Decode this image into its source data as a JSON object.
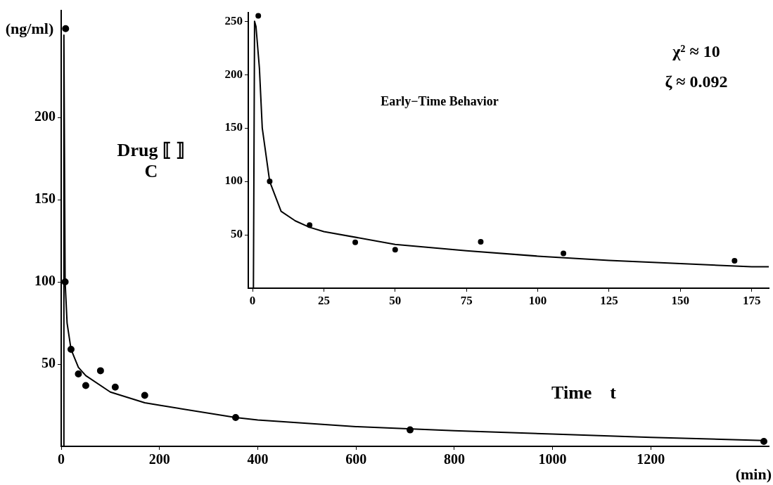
{
  "chart_data": [
    {
      "type": "scatter",
      "xlabel": "Time    t",
      "ylabel": "Drug ⟦ ⟧\nC",
      "annotations": [
        "(ng/ml)",
        "(min)"
      ],
      "xlim": [
        0,
        1440
      ],
      "ylim": [
        0,
        265
      ],
      "xticks": [
        0,
        200,
        400,
        600,
        800,
        1000,
        1200
      ],
      "yticks": [
        50,
        100,
        150,
        200
      ],
      "grid": false,
      "legend": false,
      "marker": "circle",
      "series": [
        {
          "type": "scatter",
          "color": "#000000",
          "x": [
            9,
            8,
            20,
            35,
            50,
            80,
            110,
            170,
            355,
            710,
            1430
          ],
          "values": [
            254,
            100,
            59,
            44,
            37,
            46,
            36,
            31,
            17.5,
            10,
            3
          ]
        },
        {
          "type": "line",
          "color": "#000000",
          "marker": "none",
          "x": [
            5,
            5.5,
            8,
            12,
            20,
            35,
            50,
            100,
            170,
            200,
            355,
            400,
            600,
            800,
            1000,
            1200,
            1430
          ],
          "values": [
            0,
            250,
            100,
            75,
            59,
            48,
            43,
            33,
            26.5,
            25,
            17.5,
            16,
            12,
            9.5,
            7.5,
            5.5,
            3.5
          ]
        }
      ]
    },
    {
      "type": "scatter",
      "title": "Early−Time Behavior",
      "annotations": [
        "χ² ≈ 10",
        "ζ ≈ 0.092"
      ],
      "xlim": [
        -1.5,
        181
      ],
      "ylim": [
        0,
        258
      ],
      "xticks": [
        0,
        25,
        50,
        75,
        100,
        125,
        150,
        175
      ],
      "yticks": [
        50,
        100,
        150,
        200,
        250
      ],
      "grid": false,
      "legend": false,
      "marker": "circle",
      "series": [
        {
          "type": "scatter",
          "color": "#000000",
          "x": [
            2,
            6,
            20,
            36,
            50,
            80,
            109,
            169
          ],
          "values": [
            255,
            100,
            59,
            43,
            36,
            43.5,
            32.5,
            25.6
          ]
        },
        {
          "type": "line",
          "color": "#000000",
          "marker": "none",
          "x": [
            0.3,
            0.7,
            1.2,
            2.4,
            3.4,
            6,
            10,
            15,
            20,
            25,
            50,
            75,
            100,
            125,
            150,
            175,
            181
          ],
          "values": [
            0,
            250,
            245,
            206,
            150,
            100,
            72,
            63,
            57,
            53,
            41,
            35,
            30,
            26,
            23,
            20,
            20
          ]
        }
      ]
    }
  ]
}
